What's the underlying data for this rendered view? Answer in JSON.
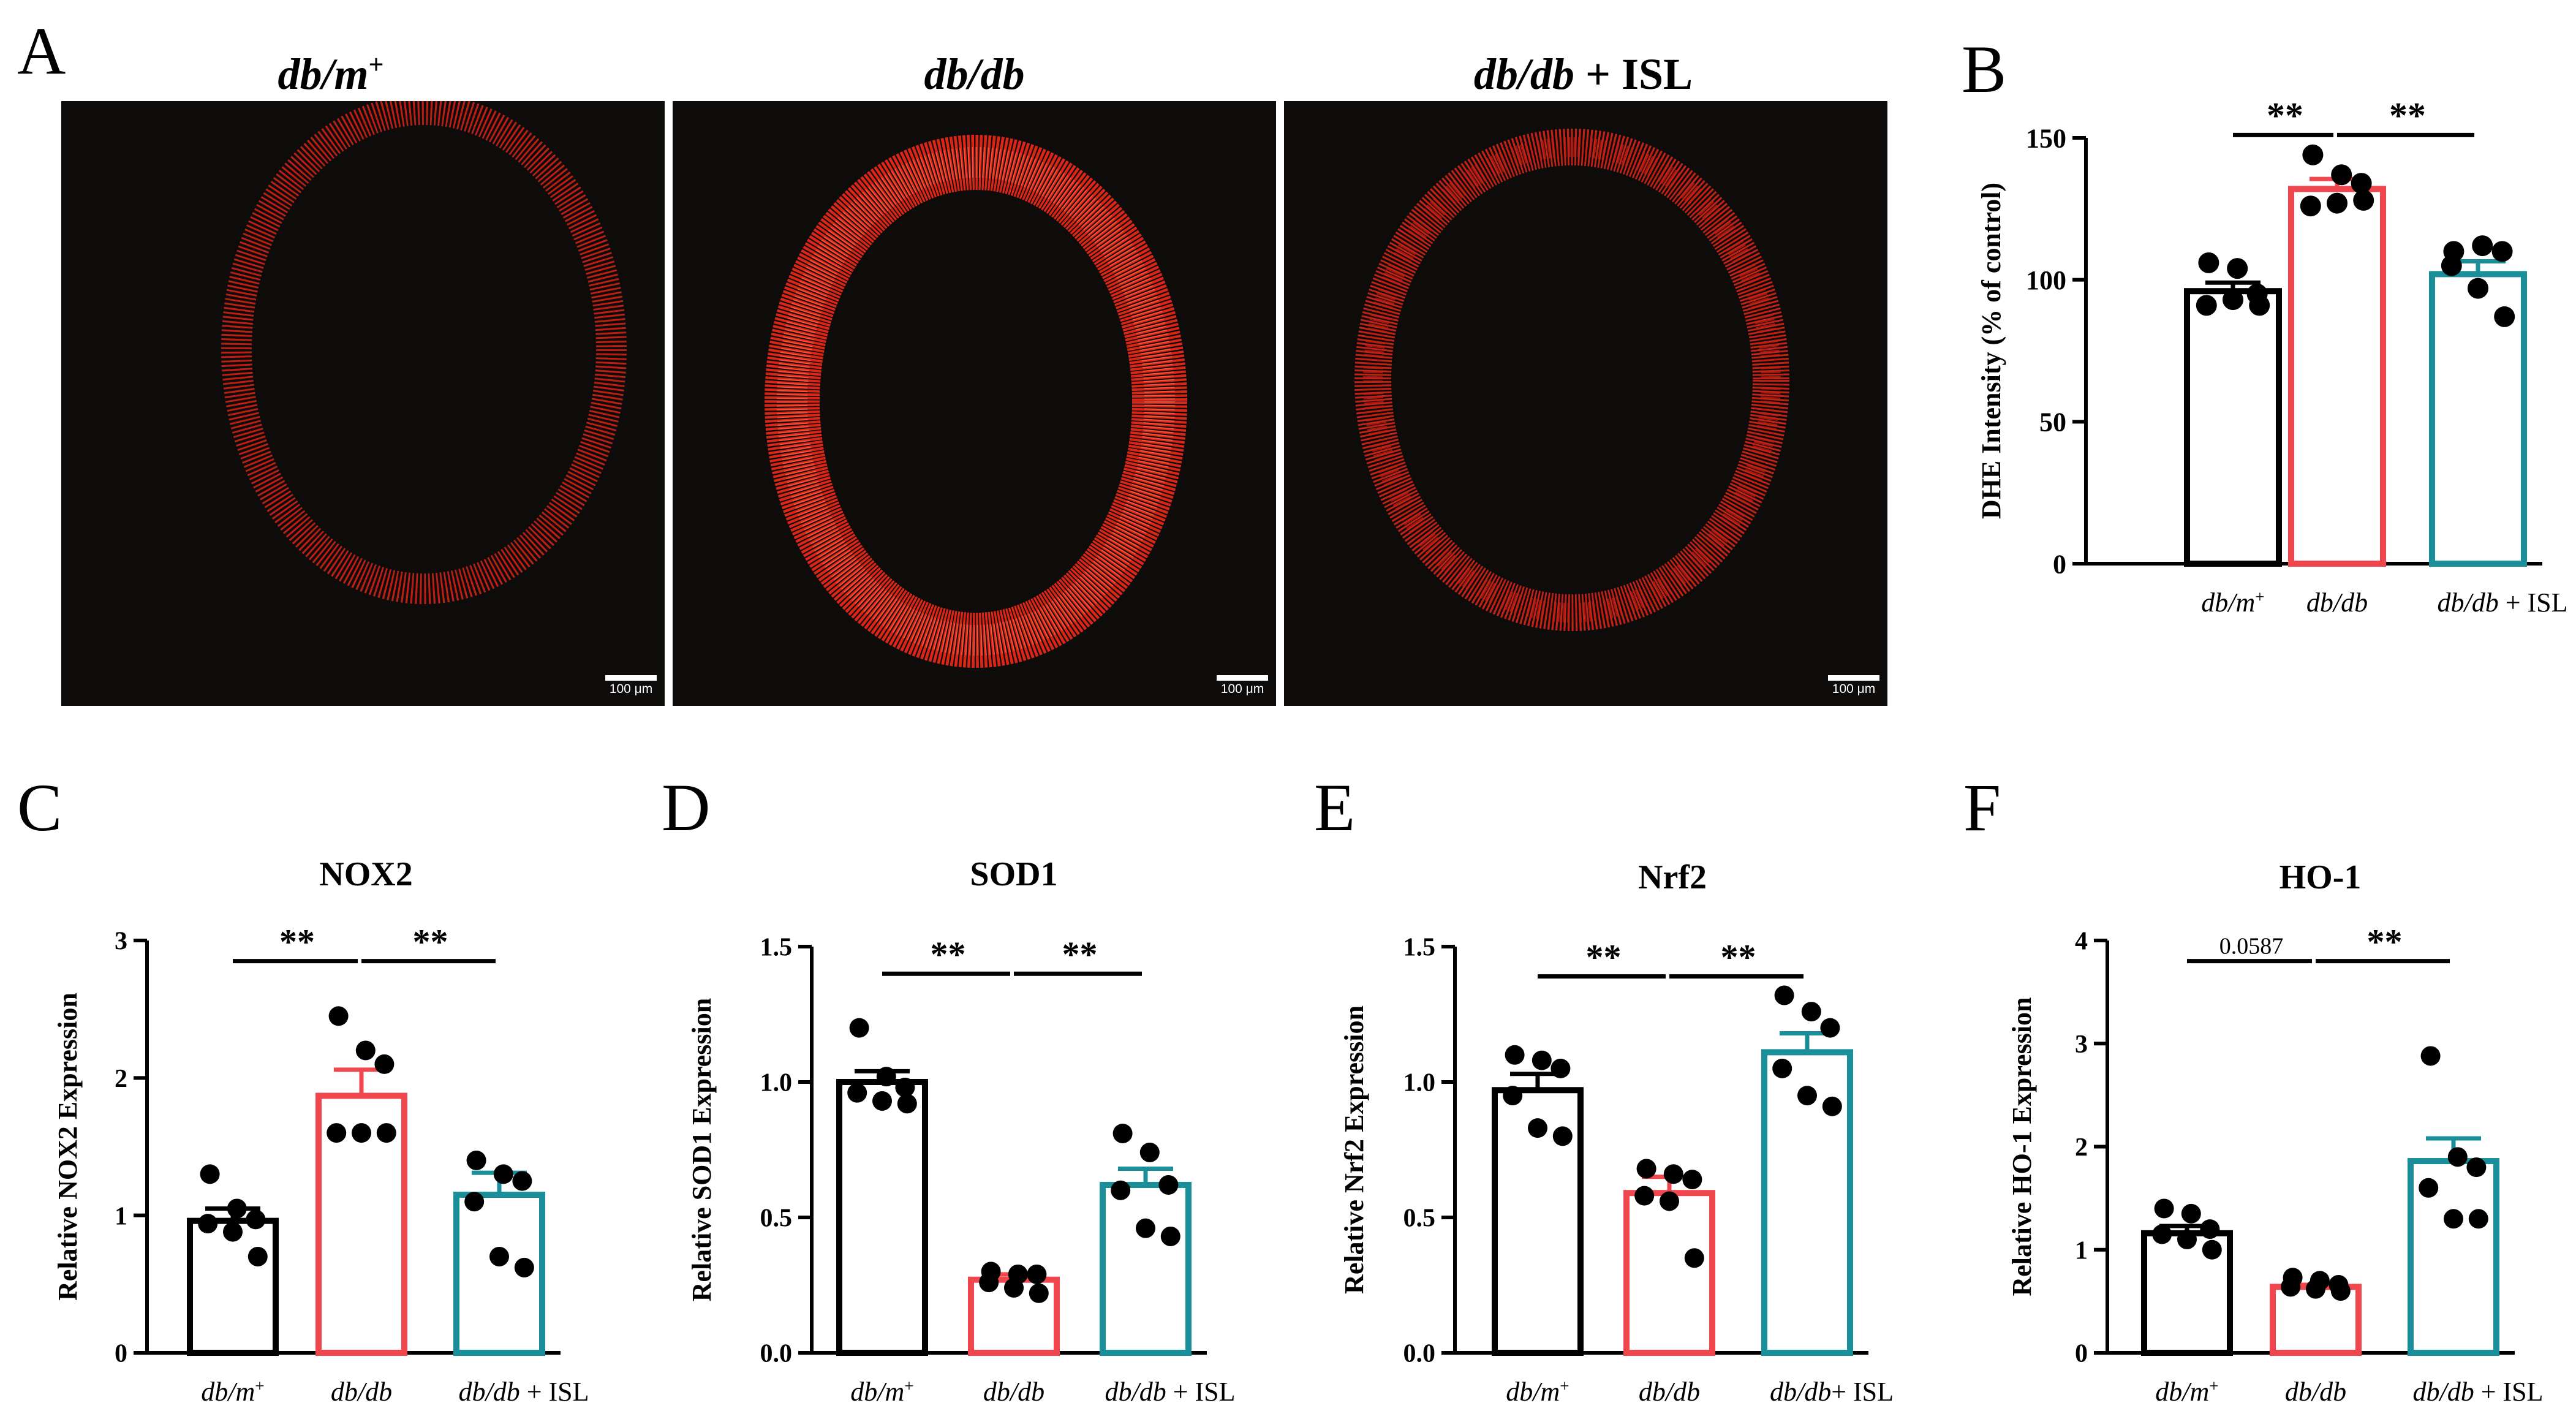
{
  "panel_labels": {
    "a": "A",
    "b": "B",
    "c": "C",
    "d": "D",
    "e": "E",
    "f": "F"
  },
  "images": {
    "titles": [
      {
        "italic": "db/m",
        "sup": "+",
        "plain": ""
      },
      {
        "italic": "db/db",
        "sup": "",
        "plain": ""
      },
      {
        "italic": "db/db",
        "sup": "",
        "plain": " + ISL"
      }
    ],
    "scale_bar_label": "100 μm",
    "signal_color": "#ff2a1a",
    "background_color": "#0e0b0b"
  },
  "colors": {
    "group1": "#000000",
    "group2": "#f0474f",
    "group3": "#1a8f9a"
  },
  "chart_data": [
    {
      "id": "B",
      "type": "bar",
      "title": "",
      "ylabel": "DHE Intensity (% of control)",
      "ylim": [
        0,
        150
      ],
      "yticks": [
        "0",
        "50",
        "100",
        "150"
      ],
      "ytick_values": [
        0,
        50,
        100,
        150
      ],
      "categories": [
        {
          "italic": "db/m",
          "sup": "+",
          "plain": ""
        },
        {
          "italic": "db/db",
          "sup": "",
          "plain": ""
        },
        {
          "italic": "db/db",
          "sup": "",
          "plain": " + ISL"
        }
      ],
      "means": [
        96,
        132,
        102
      ],
      "sem": [
        3,
        3.5,
        4.5
      ],
      "points": [
        [
          106,
          104,
          95,
          91,
          93,
          91
        ],
        [
          144,
          137,
          134,
          126,
          127,
          128
        ],
        [
          110,
          112,
          110,
          105,
          97,
          87
        ]
      ],
      "sig": [
        {
          "from": 0,
          "to": 1,
          "label": "**"
        },
        {
          "from": 1,
          "to": 2,
          "label": "**"
        }
      ],
      "sig_y": 151
    },
    {
      "id": "C",
      "type": "bar",
      "title": "NOX2",
      "ylabel": "Relative NOX2 Expression",
      "ylim": [
        0,
        3
      ],
      "yticks": [
        "0",
        "1",
        "2",
        "3"
      ],
      "ytick_values": [
        0,
        1,
        2,
        3
      ],
      "categories": [
        {
          "italic": "db/m",
          "sup": "+",
          "plain": ""
        },
        {
          "italic": "db/db",
          "sup": "",
          "plain": ""
        },
        {
          "italic": "db/db",
          "sup": "",
          "plain": " + ISL"
        }
      ],
      "means": [
        0.96,
        1.87,
        1.15
      ],
      "sem": [
        0.09,
        0.19,
        0.16
      ],
      "points": [
        [
          1.3,
          1.05,
          0.97,
          0.94,
          0.88,
          0.7
        ],
        [
          2.45,
          2.2,
          2.1,
          1.6,
          1.6,
          1.6
        ],
        [
          1.4,
          1.3,
          1.25,
          1.1,
          0.7,
          0.62
        ]
      ],
      "sig": [
        {
          "from": 0,
          "to": 1,
          "label": "**"
        },
        {
          "from": 1,
          "to": 2,
          "label": "**"
        }
      ],
      "sig_y": 2.85
    },
    {
      "id": "D",
      "type": "bar",
      "title": "SOD1",
      "ylabel": "Relative SOD1 Expression",
      "ylim": [
        0,
        1.5
      ],
      "yticks": [
        "0.0",
        "0.5",
        "1.0",
        "1.5"
      ],
      "ytick_values": [
        0,
        0.5,
        1,
        1.5
      ],
      "categories": [
        {
          "italic": "db/m",
          "sup": "+",
          "plain": ""
        },
        {
          "italic": "db/db",
          "sup": "",
          "plain": ""
        },
        {
          "italic": "db/db",
          "sup": "",
          "plain": " + ISL"
        }
      ],
      "means": [
        1.0,
        0.27,
        0.62
      ],
      "sem": [
        0.04,
        0.02,
        0.06
      ],
      "points": [
        [
          1.2,
          1.02,
          0.98,
          0.96,
          0.93,
          0.92
        ],
        [
          0.3,
          0.29,
          0.29,
          0.26,
          0.24,
          0.22
        ],
        [
          0.81,
          0.74,
          0.62,
          0.6,
          0.46,
          0.43
        ]
      ],
      "sig": [
        {
          "from": 0,
          "to": 1,
          "label": "**"
        },
        {
          "from": 1,
          "to": 2,
          "label": "**"
        }
      ],
      "sig_y": 1.4
    },
    {
      "id": "E",
      "type": "bar",
      "title": "Nrf2",
      "ylabel": "Relative Nrf2 Expression",
      "ylim": [
        0,
        1.5
      ],
      "yticks": [
        "0.0",
        "0.5",
        "1.0",
        "1.5"
      ],
      "ytick_values": [
        0,
        0.5,
        1,
        1.5
      ],
      "categories": [
        {
          "italic": "db/m",
          "sup": "+",
          "plain": ""
        },
        {
          "italic": "db/db",
          "sup": "",
          "plain": ""
        },
        {
          "italic": "db/db",
          "sup": "",
          "plain": "+ ISL"
        }
      ],
      "means": [
        0.97,
        0.59,
        1.11
      ],
      "sem": [
        0.06,
        0.06,
        0.07
      ],
      "points": [
        [
          1.1,
          1.08,
          1.05,
          0.95,
          0.83,
          0.8
        ],
        [
          0.68,
          0.66,
          0.64,
          0.58,
          0.56,
          0.35
        ],
        [
          1.32,
          1.26,
          1.2,
          1.05,
          0.95,
          0.91
        ]
      ],
      "sig": [
        {
          "from": 0,
          "to": 1,
          "label": "**"
        },
        {
          "from": 1,
          "to": 2,
          "label": "**"
        }
      ],
      "sig_y": 1.39
    },
    {
      "id": "F",
      "type": "bar",
      "title": "HO-1",
      "ylabel": "Relative HO-1 Expression",
      "ylim": [
        0,
        4
      ],
      "yticks": [
        "0",
        "1",
        "2",
        "3",
        "4"
      ],
      "ytick_values": [
        0,
        1,
        2,
        3,
        4
      ],
      "categories": [
        {
          "italic": "db/m",
          "sup": "+",
          "plain": ""
        },
        {
          "italic": "db/db",
          "sup": "",
          "plain": ""
        },
        {
          "italic": "db/db",
          "sup": "",
          "plain": " + ISL"
        }
      ],
      "means": [
        1.16,
        0.64,
        1.86
      ],
      "sem": [
        0.07,
        0.02,
        0.22
      ],
      "points": [
        [
          1.4,
          1.35,
          1.2,
          1.15,
          1.1,
          1.0
        ],
        [
          0.73,
          0.7,
          0.66,
          0.64,
          0.62,
          0.6
        ],
        [
          2.88,
          1.9,
          1.8,
          1.6,
          1.3,
          1.3
        ]
      ],
      "sig": [
        {
          "from": 0,
          "to": 1,
          "label": "0.0587"
        },
        {
          "from": 1,
          "to": 2,
          "label": "**"
        }
      ],
      "sig_y": 3.8
    }
  ]
}
